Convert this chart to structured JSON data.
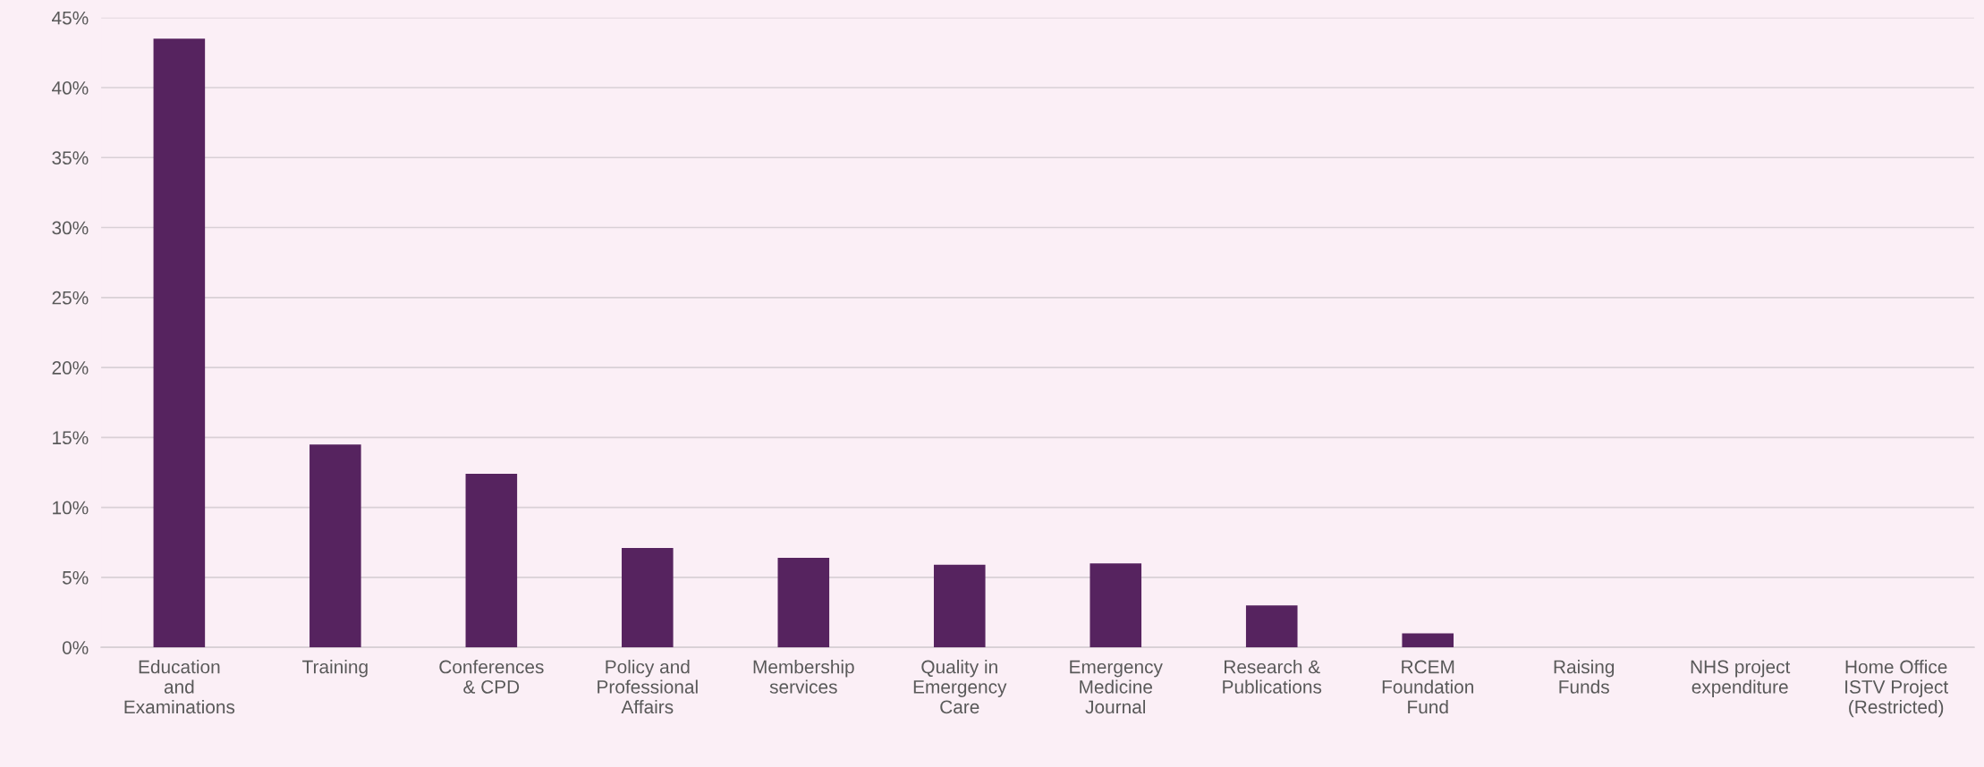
{
  "chart_data": {
    "type": "bar",
    "categories": [
      "Education\nand\nExaminations",
      "Training",
      "Conferences\n& CPD",
      "Policy and\nProfessional\nAffairs",
      "Membership\nservices",
      "Quality in\nEmergency\nCare",
      "Emergency\nMedicine\nJournal",
      "Research &\nPublications",
      "RCEM\nFoundation\nFund",
      "Raising\nFunds",
      "NHS project\nexpenditure",
      "Home Office\nISTV Project\n(Restricted)"
    ],
    "values": [
      43.5,
      14.5,
      12.4,
      7.1,
      6.4,
      5.9,
      6.0,
      3.0,
      1.0,
      0,
      0,
      0
    ],
    "color": "#56235f",
    "ylim": [
      0,
      45
    ],
    "yticks": [
      {
        "value": 0,
        "label": "0%"
      },
      {
        "value": 5,
        "label": "5%"
      },
      {
        "value": 10,
        "label": "10%"
      },
      {
        "value": 15,
        "label": "15%"
      },
      {
        "value": 20,
        "label": "20%"
      },
      {
        "value": 25,
        "label": "25%"
      },
      {
        "value": 30,
        "label": "30%"
      },
      {
        "value": 35,
        "label": "35%"
      },
      {
        "value": 40,
        "label": "40%"
      },
      {
        "value": 45,
        "label": "45%"
      }
    ],
    "grid": "y"
  }
}
